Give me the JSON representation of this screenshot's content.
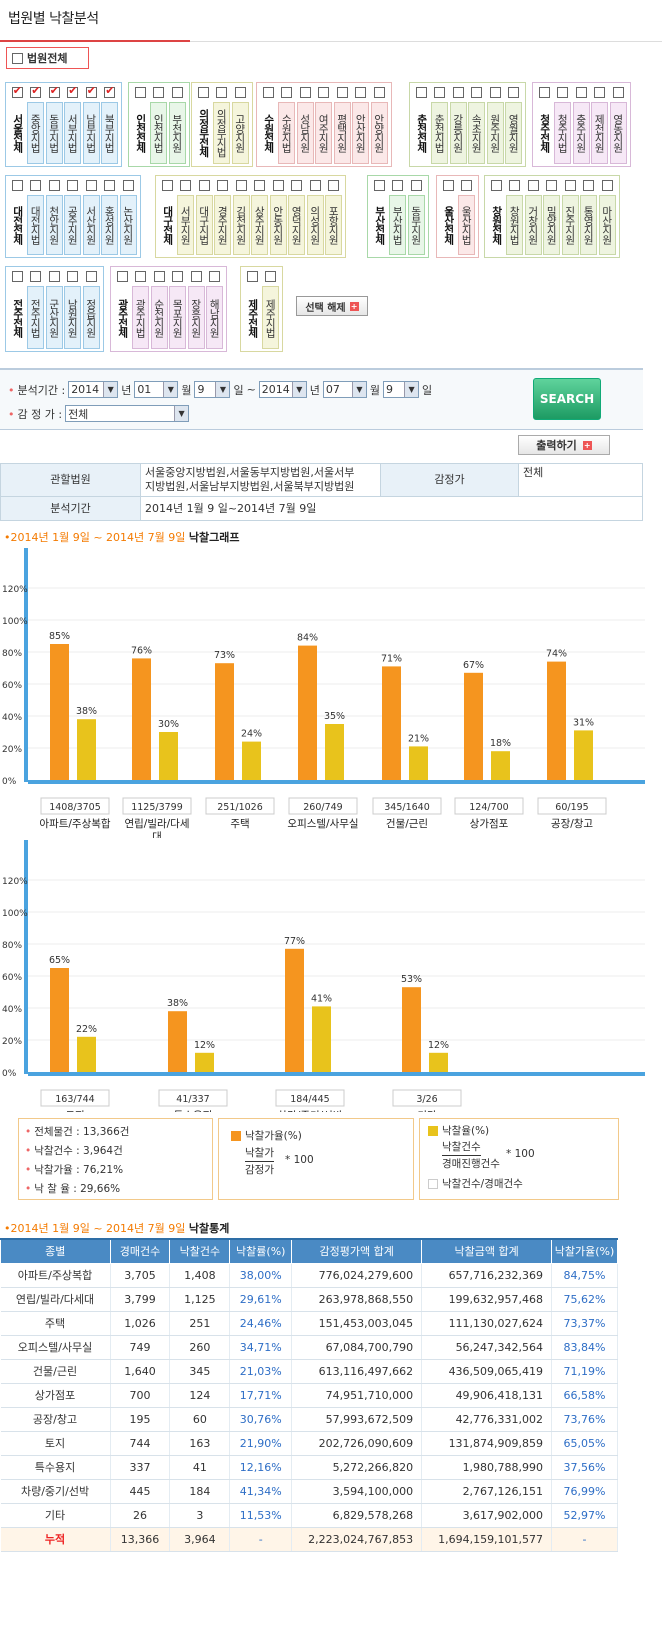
{
  "header": {
    "title": "법원별 낙찰분석",
    "court_all_label": "법원전체"
  },
  "court_groups": [
    {
      "head": "서울전체",
      "head_checked": true,
      "courts": [
        {
          "name": "중앙지법",
          "checked": true
        },
        {
          "name": "동부지법",
          "checked": true
        },
        {
          "name": "서부지법",
          "checked": true
        },
        {
          "name": "남부지법",
          "checked": true
        },
        {
          "name": "북부지법",
          "checked": true
        }
      ],
      "color": "#9cc9e6",
      "fill": "#e3f1fa"
    },
    {
      "head": "인천전체",
      "head_checked": false,
      "courts": [
        {
          "name": "인천지법",
          "checked": false
        },
        {
          "name": "부천지원",
          "checked": false
        }
      ],
      "color": "#a8d8a8",
      "fill": "#e8f6e8"
    },
    {
      "head": "의정부전체",
      "head_checked": false,
      "courts": [
        {
          "name": "의정부지법",
          "checked": false
        },
        {
          "name": "고양지원",
          "checked": false
        }
      ],
      "color": "#d8d8a0",
      "fill": "#f5f5dc"
    },
    {
      "head": "수원전체",
      "head_checked": false,
      "courts": [
        {
          "name": "수원지법",
          "checked": false
        },
        {
          "name": "성남지원",
          "checked": false
        },
        {
          "name": "여주지원",
          "checked": false
        },
        {
          "name": "평택지원",
          "checked": false
        },
        {
          "name": "안산지원",
          "checked": false
        },
        {
          "name": "안양지원",
          "checked": false
        }
      ],
      "color": "#e8b8b8",
      "fill": "#fbe8e8"
    },
    {
      "head": "춘천전체",
      "head_checked": false,
      "courts": [
        {
          "name": "춘천지법",
          "checked": false
        },
        {
          "name": "강릉지원",
          "checked": false
        },
        {
          "name": "속초지원",
          "checked": false
        },
        {
          "name": "원주지원",
          "checked": false
        },
        {
          "name": "영월지원",
          "checked": false
        }
      ],
      "color": "#c8d8a8",
      "fill": "#eef4e0"
    },
    {
      "head": "청주전체",
      "head_checked": false,
      "courts": [
        {
          "name": "청주지법",
          "checked": false
        },
        {
          "name": "충주지원",
          "checked": false
        },
        {
          "name": "제천지원",
          "checked": false
        },
        {
          "name": "영동지원",
          "checked": false
        }
      ],
      "color": "#d8b8d8",
      "fill": "#f6e8f6"
    },
    {
      "head": "대전전체",
      "head_checked": false,
      "courts": [
        {
          "name": "대전지법",
          "checked": false
        },
        {
          "name": "천안지원",
          "checked": false
        },
        {
          "name": "공주지원",
          "checked": false
        },
        {
          "name": "서산지원",
          "checked": false
        },
        {
          "name": "홍성지원",
          "checked": false
        },
        {
          "name": "논산지원",
          "checked": false
        }
      ],
      "color": "#9cc9e6",
      "fill": "#e3f1fa"
    },
    {
      "head": "대구전체",
      "head_checked": false,
      "courts": [
        {
          "name": "서부지원",
          "checked": false
        },
        {
          "name": "대구지법",
          "checked": false
        },
        {
          "name": "경주지원",
          "checked": false
        },
        {
          "name": "김천지원",
          "checked": false
        },
        {
          "name": "상주지원",
          "checked": false
        },
        {
          "name": "안동지원",
          "checked": false
        },
        {
          "name": "영덕지원",
          "checked": false
        },
        {
          "name": "의성지원",
          "checked": false
        },
        {
          "name": "포항지원",
          "checked": false
        }
      ],
      "color": "#d8d8a0",
      "fill": "#f5f5dc"
    },
    {
      "head": "부산전체",
      "head_checked": false,
      "courts": [
        {
          "name": "부산지법",
          "checked": false
        },
        {
          "name": "동부지원",
          "checked": false
        }
      ],
      "color": "#a8d8a8",
      "fill": "#e8f6e8"
    },
    {
      "head": "울산전체",
      "head_checked": false,
      "courts": [
        {
          "name": "울산지법",
          "checked": false
        }
      ],
      "color": "#e8b8b8",
      "fill": "#fbe8e8"
    },
    {
      "head": "창원전체",
      "head_checked": false,
      "courts": [
        {
          "name": "창원지법",
          "checked": false
        },
        {
          "name": "거창지원",
          "checked": false
        },
        {
          "name": "밀양지원",
          "checked": false
        },
        {
          "name": "진주지원",
          "checked": false
        },
        {
          "name": "통영지원",
          "checked": false
        },
        {
          "name": "마산지원",
          "checked": false
        }
      ],
      "color": "#c8d8a8",
      "fill": "#eef4e0"
    },
    {
      "head": "전주전체",
      "head_checked": false,
      "courts": [
        {
          "name": "전주지법",
          "checked": false
        },
        {
          "name": "군산지원",
          "checked": false
        },
        {
          "name": "남원지원",
          "checked": false
        },
        {
          "name": "정읍지원",
          "checked": false
        }
      ],
      "color": "#9cc9e6",
      "fill": "#e3f1fa"
    },
    {
      "head": "광주전체",
      "head_checked": false,
      "courts": [
        {
          "name": "광주지법",
          "checked": false
        },
        {
          "name": "순천지원",
          "checked": false
        },
        {
          "name": "목포지원",
          "checked": false
        },
        {
          "name": "장흥지원",
          "checked": false
        },
        {
          "name": "해남지원",
          "checked": false
        }
      ],
      "color": "#d8b8d8",
      "fill": "#f6e8f6"
    },
    {
      "head": "제주전체",
      "head_checked": false,
      "courts": [
        {
          "name": "제주지법",
          "checked": false
        }
      ],
      "color": "#d8d8a0",
      "fill": "#f5f5dc"
    }
  ],
  "deselect_label": "선택 해제",
  "search": {
    "period_label": "분석기간 :",
    "from_year": "2014",
    "from_month": "01",
    "from_day": "9",
    "to_year": "2014",
    "to_month": "07",
    "to_day": "9",
    "year_unit": "년",
    "month_unit": "월",
    "day_unit": "일",
    "tilde": "~",
    "appraiser_label": "감 정 가 :",
    "appraiser_value": "전체",
    "search_button": "SEARCH",
    "print_button": "출력하기"
  },
  "info": {
    "court_label": "관할법원",
    "court_value_1": "서울중앙지방법원,서울동부지방법원,서울서부",
    "court_value_2": "지방법원,서울남부지방법원,서울북부지방법원",
    "appraiser_label": "감정가",
    "appraiser_value": "전체",
    "period_label": "분석기간",
    "period_value": "2014년 1월 9 일~2014년 7월 9일"
  },
  "graph_section": {
    "period": "2014년 1월 9일 ~ 2014년 7월 9일",
    "title": "낙찰그래프"
  },
  "chart_data": [
    {
      "type": "bar",
      "categories": [
        "아파트/주상복합",
        "연립/빌라/다세대",
        "주택",
        "오피스텔/사무실",
        "건물/근린",
        "상가점포",
        "공장/창고"
      ],
      "counts": [
        "1408/3705",
        "1125/3799",
        "251/1026",
        "260/749",
        "345/1640",
        "124/700",
        "60/195"
      ],
      "series": [
        {
          "name": "낙찰가율(%)",
          "values": [
            85,
            76,
            73,
            84,
            71,
            67,
            74
          ],
          "labels": [
            "85%",
            "76%",
            "73%",
            "84%",
            "71%",
            "67%",
            "74%"
          ],
          "color": "#f5951f"
        },
        {
          "name": "낙찰율(%)",
          "values": [
            38,
            30,
            24,
            35,
            21,
            18,
            31
          ],
          "labels": [
            "38%",
            "30%",
            "24%",
            "35%",
            "21%",
            "18%",
            "31%"
          ],
          "color": "#e8c31c"
        }
      ],
      "yticks": [
        "0%",
        "20%",
        "40%",
        "60%",
        "80%",
        "100%",
        "120%"
      ],
      "ylim": [
        0,
        120
      ]
    },
    {
      "type": "bar",
      "categories": [
        "토지",
        "특수용지",
        "차량/중기/선박",
        "기타"
      ],
      "counts": [
        "163/744",
        "41/337",
        "184/445",
        "3/26"
      ],
      "series": [
        {
          "name": "낙찰가율(%)",
          "values": [
            65,
            38,
            77,
            53
          ],
          "labels": [
            "65%",
            "38%",
            "77%",
            "53%"
          ],
          "color": "#f5951f"
        },
        {
          "name": "낙찰율(%)",
          "values": [
            22,
            12,
            41,
            12
          ],
          "labels": [
            "22%",
            "12%",
            "41%",
            "12%"
          ],
          "color": "#e8c31c"
        }
      ],
      "yticks": [
        "0%",
        "20%",
        "40%",
        "60%",
        "80%",
        "100%",
        "120%"
      ],
      "ylim": [
        0,
        120
      ]
    }
  ],
  "summary": {
    "total_items": "전체물건 : 13,366건",
    "sold_items": "낙찰건수 : 3,964건",
    "price_ratio": "낙찰가율 : 76,21%",
    "sold_ratio": "낙 찰 율 : 29,66%",
    "legend1_title": "낙찰가율(%)",
    "legend1_num": "낙찰가",
    "legend1_den": "감정가",
    "legend1_mult": "* 100",
    "legend2_title": "낙찰율(%)",
    "legend2_num": "낙찰건수",
    "legend2_den": "경매진행건수",
    "legend2_mult": "* 100",
    "legend2_note": "낙찰건수/경매건수"
  },
  "stats_section": {
    "period": "2014년 1월 9일 ~ 2014년 7월 9일",
    "title": "낙찰통계"
  },
  "stats_table": {
    "headers": [
      "종별",
      "경매건수",
      "낙찰건수",
      "낙찰률(%)",
      "감정평가액 합계",
      "낙찰금액 합계",
      "낙찰가율(%)"
    ],
    "rows": [
      [
        "아파트/주상복합",
        "3,705",
        "1,408",
        "38,00%",
        "776,024,279,600",
        "657,716,232,369",
        "84,75%"
      ],
      [
        "연립/빌라/다세대",
        "3,799",
        "1,125",
        "29,61%",
        "263,978,868,550",
        "199,632,957,468",
        "75,62%"
      ],
      [
        "주택",
        "1,026",
        "251",
        "24,46%",
        "151,453,003,045",
        "111,130,027,624",
        "73,37%"
      ],
      [
        "오피스텔/사무실",
        "749",
        "260",
        "34,71%",
        "67,084,700,790",
        "56,247,342,564",
        "83,84%"
      ],
      [
        "건물/근린",
        "1,640",
        "345",
        "21,03%",
        "613,116,497,662",
        "436,509,065,419",
        "71,19%"
      ],
      [
        "상가점포",
        "700",
        "124",
        "17,71%",
        "74,951,710,000",
        "49,906,418,131",
        "66,58%"
      ],
      [
        "공장/창고",
        "195",
        "60",
        "30,76%",
        "57,993,672,509",
        "42,776,331,002",
        "73,76%"
      ],
      [
        "토지",
        "744",
        "163",
        "21,90%",
        "202,726,090,609",
        "131,874,909,859",
        "65,05%"
      ],
      [
        "특수용지",
        "337",
        "41",
        "12,16%",
        "5,272,266,820",
        "1,980,788,990",
        "37,56%"
      ],
      [
        "차량/중기/선박",
        "445",
        "184",
        "41,34%",
        "3,594,100,000",
        "2,767,126,151",
        "76,99%"
      ],
      [
        "기타",
        "26",
        "3",
        "11,53%",
        "6,829,578,268",
        "3,617,902,000",
        "52,97%"
      ]
    ],
    "total": [
      "누적",
      "13,366",
      "3,964",
      "-",
      "2,223,024,767,853",
      "1,694,159,101,577",
      "-"
    ]
  }
}
